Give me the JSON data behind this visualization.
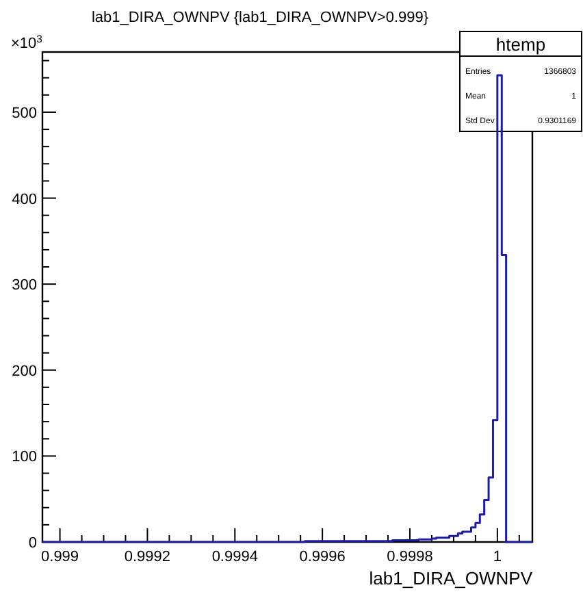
{
  "chart_data": {
    "type": "histogram",
    "title": "lab1_DIRA_OWNPV {lab1_DIRA_OWNPV>0.999}",
    "xlabel": "lab1_DIRA_OWNPV",
    "bins": [
      0.99896,
      0.99897,
      0.99898,
      0.99899,
      0.999,
      0.99901,
      0.99902,
      0.99903,
      0.99904,
      0.99905,
      0.99906,
      0.99907,
      0.99908,
      0.99909,
      0.9991,
      0.99911,
      0.99912,
      0.99913,
      0.99914,
      0.99915,
      0.99916,
      0.99917,
      0.99918,
      0.99919,
      0.9992,
      0.99921,
      0.99922,
      0.99923,
      0.99924,
      0.99925,
      0.99926,
      0.99927,
      0.99928,
      0.99929,
      0.9993,
      0.99931,
      0.99932,
      0.99933,
      0.99934,
      0.99935,
      0.99936,
      0.99937,
      0.99938,
      0.99939,
      0.9994,
      0.99941,
      0.99942,
      0.99943,
      0.99944,
      0.99945,
      0.99946,
      0.99947,
      0.99948,
      0.99949,
      0.9995,
      0.99951,
      0.99952,
      0.99953,
      0.99954,
      0.99955,
      0.99956,
      0.99957,
      0.99958,
      0.99959,
      0.9996,
      0.99961,
      0.99962,
      0.99963,
      0.99964,
      0.99965,
      0.99966,
      0.99967,
      0.99968,
      0.99969,
      0.9997,
      0.99971,
      0.99972,
      0.99973,
      0.99974,
      0.99975,
      0.99976,
      0.99977,
      0.99978,
      0.99979,
      0.9998,
      0.99981,
      0.99982,
      0.99983,
      0.99984,
      0.99985,
      0.99986,
      0.99987,
      0.99988,
      0.99989,
      0.9999,
      0.99991,
      0.99992,
      0.99993,
      0.99994,
      0.99995,
      0.99996,
      0.99997,
      0.99998,
      0.99999,
      1,
      1.00001,
      1.00002,
      1.00003,
      1.00004,
      1.00005,
      1.00006,
      1.00007,
      1.00008
    ],
    "values": [
      0,
      0,
      0,
      0,
      0,
      0,
      0,
      0,
      0,
      0,
      0,
      0,
      0,
      0,
      0,
      0,
      0,
      0,
      0,
      0,
      0,
      0,
      0,
      0,
      0,
      0,
      0,
      0,
      0,
      0,
      0,
      0,
      0,
      0,
      0,
      0,
      0,
      0,
      0,
      0,
      0,
      0,
      0,
      0,
      0,
      0,
      0,
      0,
      0,
      0,
      0,
      0,
      0,
      0,
      0,
      0,
      0,
      0,
      0,
      0,
      1,
      1,
      1,
      1,
      1,
      1,
      1,
      1,
      1,
      1,
      1,
      1,
      1,
      1,
      1,
      1,
      1,
      1,
      1,
      1,
      2,
      2,
      2,
      2,
      2,
      2,
      3,
      3,
      3,
      4,
      5,
      5,
      5,
      7,
      7,
      10,
      12,
      12,
      17,
      22,
      32,
      49,
      75,
      142,
      543,
      334,
      0,
      0,
      0,
      0,
      0,
      0
    ],
    "color": "#1c1ca6",
    "xlim": [
      0.99896,
      1.00008
    ],
    "xticks": [
      {
        "value": 0.999,
        "label": "0.999"
      },
      {
        "value": 0.99905,
        "label": null
      },
      {
        "value": 0.9991,
        "label": null
      },
      {
        "value": 0.99915,
        "label": null
      },
      {
        "value": 0.9992,
        "label": "0.9992"
      },
      {
        "value": 0.99925,
        "label": null
      },
      {
        "value": 0.9993,
        "label": null
      },
      {
        "value": 0.99935,
        "label": null
      },
      {
        "value": 0.9994,
        "label": "0.9994"
      },
      {
        "value": 0.99945,
        "label": null
      },
      {
        "value": 0.9995,
        "label": null
      },
      {
        "value": 0.99955,
        "label": null
      },
      {
        "value": 0.9996,
        "label": "0.9996"
      },
      {
        "value": 0.99965,
        "label": null
      },
      {
        "value": 0.9997,
        "label": null
      },
      {
        "value": 0.99975,
        "label": null
      },
      {
        "value": 0.9998,
        "label": "0.9998"
      },
      {
        "value": 0.99985,
        "label": null
      },
      {
        "value": 0.9999,
        "label": null
      },
      {
        "value": 0.99995,
        "label": null
      },
      {
        "value": 1,
        "label": "1"
      },
      {
        "value": 1.00005,
        "label": null
      }
    ],
    "ylim": [
      0,
      570
    ],
    "yticks": [
      0,
      {
        "value": 20,
        "label": null
      },
      {
        "value": 40,
        "label": null
      },
      {
        "value": 60,
        "label": null
      },
      {
        "value": 80,
        "label": null
      },
      100,
      {
        "value": 120,
        "label": null
      },
      {
        "value": 140,
        "label": null
      },
      {
        "value": 160,
        "label": null
      },
      {
        "value": 180,
        "label": null
      },
      200,
      {
        "value": 220,
        "label": null
      },
      {
        "value": 240,
        "label": null
      },
      {
        "value": 260,
        "label": null
      },
      {
        "value": 280,
        "label": null
      },
      300,
      {
        "value": 320,
        "label": null
      },
      {
        "value": 340,
        "label": null
      },
      {
        "value": 360,
        "label": null
      },
      {
        "value": 380,
        "label": null
      },
      400,
      {
        "value": 420,
        "label": null
      },
      {
        "value": 440,
        "label": null
      },
      {
        "value": 460,
        "label": null
      },
      {
        "value": 480,
        "label": null
      },
      500,
      {
        "value": 520,
        "label": null
      },
      {
        "value": 540,
        "label": null
      },
      {
        "value": 560,
        "label": null
      }
    ],
    "annotations": [
      "×10$^{3}$",
      "htemp",
      "Entries",
      "1366803",
      "Mean",
      "1",
      "Std Dev",
      "0.9301169"
    ],
    "grid": false
  }
}
